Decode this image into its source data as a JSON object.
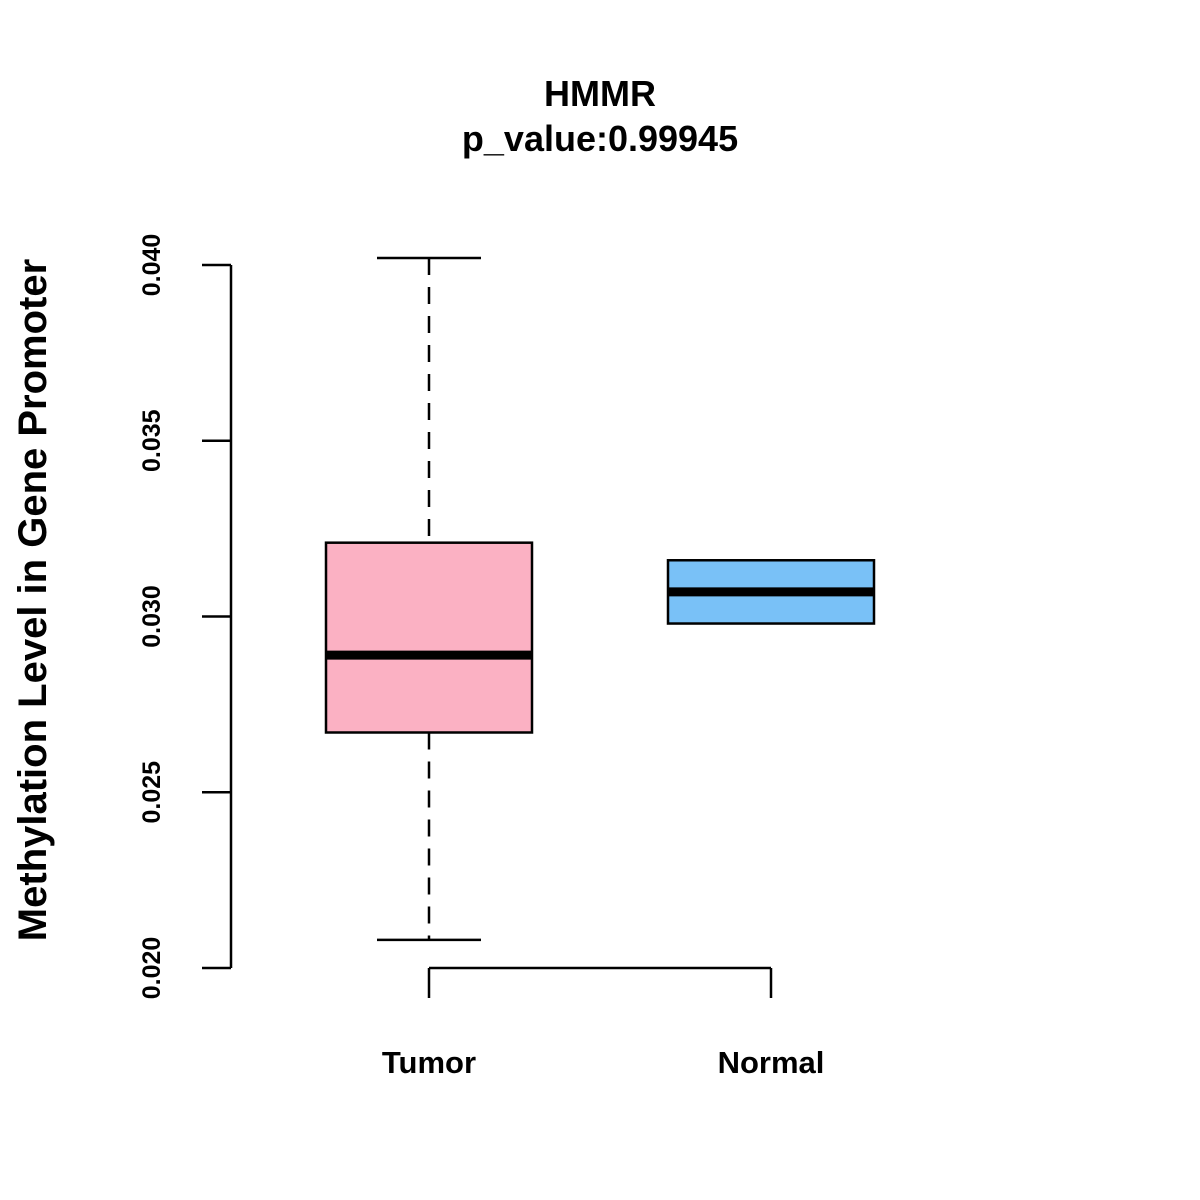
{
  "chart_data": {
    "type": "boxplot",
    "title": "HMMR",
    "subtitle": "p_value:0.99945",
    "xlabel": "",
    "ylabel": "Methylation Level in Gene Promoter",
    "ylim": [
      0.02,
      0.04
    ],
    "yticks": [
      0.02,
      0.025,
      0.03,
      0.035,
      0.04
    ],
    "ytick_labels": [
      "0.020",
      "0.025",
      "0.030",
      "0.035",
      "0.040"
    ],
    "categories": [
      "Tumor",
      "Normal"
    ],
    "boxes": [
      {
        "name": "Tumor",
        "whisker_low": 0.0208,
        "q1": 0.0267,
        "median": 0.0289,
        "q3": 0.0321,
        "whisker_high": 0.0402,
        "fill": "#FBB1C3"
      },
      {
        "name": "Normal",
        "whisker_low": 0.0298,
        "q1": 0.0298,
        "median": 0.0307,
        "q3": 0.0316,
        "whisker_high": 0.0316,
        "fill": "#79C1F7"
      }
    ],
    "grid": false,
    "legend": "none"
  }
}
